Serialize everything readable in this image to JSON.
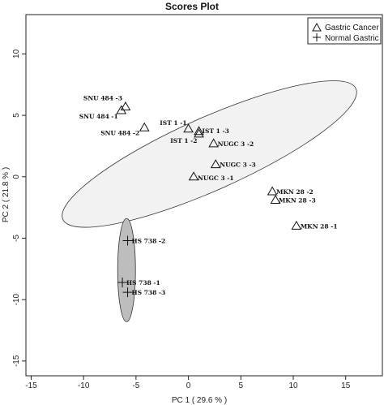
{
  "chart_data": {
    "type": "scatter",
    "title": "Scores Plot",
    "xlabel": "PC 1 ( 29.6 % )",
    "ylabel": "PC 2 ( 21.8 % )",
    "xlim": [
      -15.5,
      18.5
    ],
    "ylim": [
      -16.2,
      13.2
    ],
    "xticks": [
      -15,
      -10,
      -5,
      0,
      5,
      10,
      15
    ],
    "yticks": [
      10,
      5,
      0,
      -5,
      -10,
      -15
    ],
    "legend_position": "top-right",
    "series": [
      {
        "name": "Gastric Cancer",
        "marker": "triangle",
        "points": [
          {
            "label": "SNU 484 -3",
            "x": -6.0,
            "y": 5.7
          },
          {
            "label": "SNU 484 -1",
            "x": -6.4,
            "y": 5.4
          },
          {
            "label": "SNU 484 -2",
            "x": -4.2,
            "y": 4.0
          },
          {
            "label": "IST 1 -1",
            "x": 0.0,
            "y": 3.9
          },
          {
            "label": "IST 1 -3",
            "x": 1.0,
            "y": 3.7
          },
          {
            "label": "IST 1 -2",
            "x": 1.0,
            "y": 3.5
          },
          {
            "label": "NUGC 3 -2",
            "x": 2.4,
            "y": 2.7
          },
          {
            "label": "NUGC 3 -3",
            "x": 2.6,
            "y": 1.0
          },
          {
            "label": "NUGC 3 -1",
            "x": 0.5,
            "y": 0.0
          },
          {
            "label": "MKN 28 -2",
            "x": 8.0,
            "y": -1.2
          },
          {
            "label": "MKN 28 -3",
            "x": 8.3,
            "y": -1.9
          },
          {
            "label": "MKN 28 -1",
            "x": 10.3,
            "y": -4.0
          }
        ]
      },
      {
        "name": "Normal Gastric",
        "marker": "plus",
        "points": [
          {
            "label": "HS 738 -2",
            "x": -5.8,
            "y": -5.2
          },
          {
            "label": "HS 738 -1",
            "x": -6.3,
            "y": -8.6
          },
          {
            "label": "HS 738 -3",
            "x": -5.8,
            "y": -9.4
          }
        ]
      }
    ],
    "ellipses": [
      {
        "group": "Gastric Cancer",
        "cx": 2.0,
        "cy": 1.85,
        "rx": 15.3,
        "ry": 2.95,
        "angle_deg": -24,
        "fill": "#f2f2f2"
      },
      {
        "group": "Normal Gastric",
        "cx": -5.9,
        "cy": -7.6,
        "rx": 0.85,
        "ry": 4.2,
        "angle_deg": 0,
        "fill": "#bdbdbd"
      }
    ]
  }
}
